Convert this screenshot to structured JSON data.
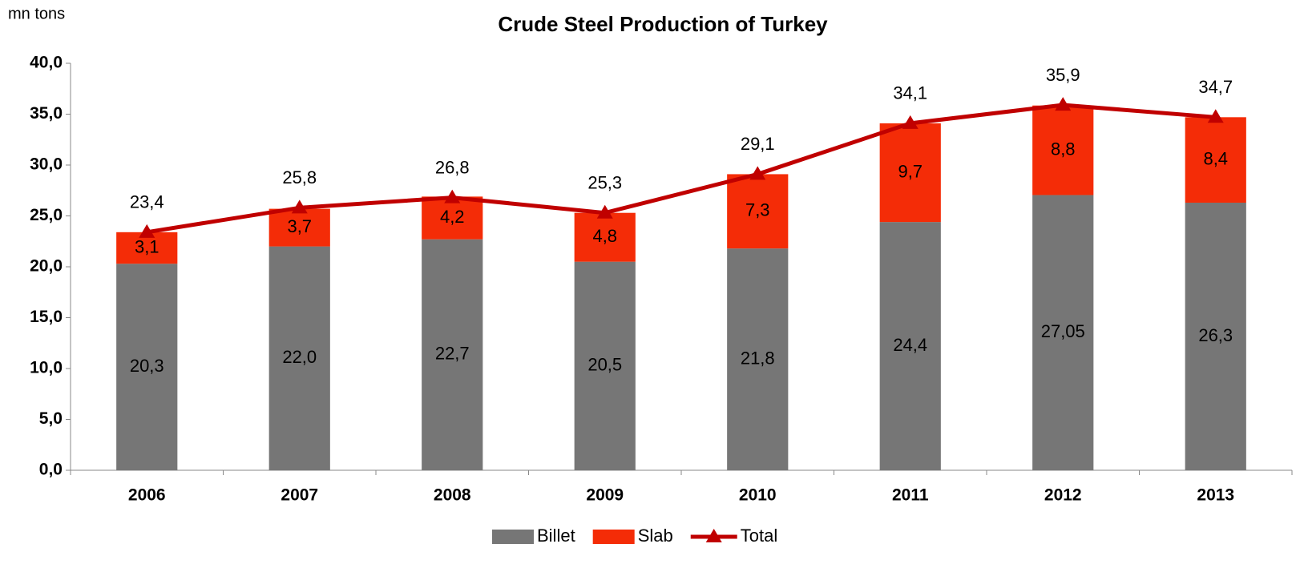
{
  "chart_data": {
    "type": "bar",
    "stacked": true,
    "title": "Crude Steel Production of Turkey",
    "y_axis_label": "mn tons",
    "categories": [
      "2006",
      "2007",
      "2008",
      "2009",
      "2010",
      "2011",
      "2012",
      "2013"
    ],
    "series": [
      {
        "name": "Billet",
        "color": "#767676",
        "values": [
          20.3,
          22.0,
          22.7,
          20.5,
          21.8,
          24.4,
          27.05,
          26.3
        ],
        "value_labels": [
          "20,3",
          "22,0",
          "22,7",
          "20,5",
          "21,8",
          "24,4",
          "27,05",
          "26,3"
        ]
      },
      {
        "name": "Slab",
        "color": "#f42c07",
        "values": [
          3.1,
          3.7,
          4.2,
          4.8,
          7.3,
          9.7,
          8.8,
          8.4
        ],
        "value_labels": [
          "3,1",
          "3,7",
          "4,2",
          "4,8",
          "7,3",
          "9,7",
          "8,8",
          "8,4"
        ]
      },
      {
        "name": "Total",
        "type": "line",
        "color": "#c00000",
        "values": [
          23.4,
          25.8,
          26.8,
          25.3,
          29.1,
          34.1,
          35.9,
          34.7
        ],
        "value_labels": [
          "23,4",
          "25,8",
          "26,8",
          "25,3",
          "29,1",
          "34,1",
          "35,9",
          "34,7"
        ]
      }
    ],
    "ylim": [
      0,
      40
    ],
    "yticks": [
      {
        "value": 0,
        "label": "0,0"
      },
      {
        "value": 5,
        "label": "5,0"
      },
      {
        "value": 10,
        "label": "10,0"
      },
      {
        "value": 15,
        "label": "15,0"
      },
      {
        "value": 20,
        "label": "20,0"
      },
      {
        "value": 25,
        "label": "25,0"
      },
      {
        "value": 30,
        "label": "30,0"
      },
      {
        "value": 35,
        "label": "35,0"
      },
      {
        "value": 40,
        "label": "40,0"
      }
    ],
    "legend": "bottom"
  }
}
